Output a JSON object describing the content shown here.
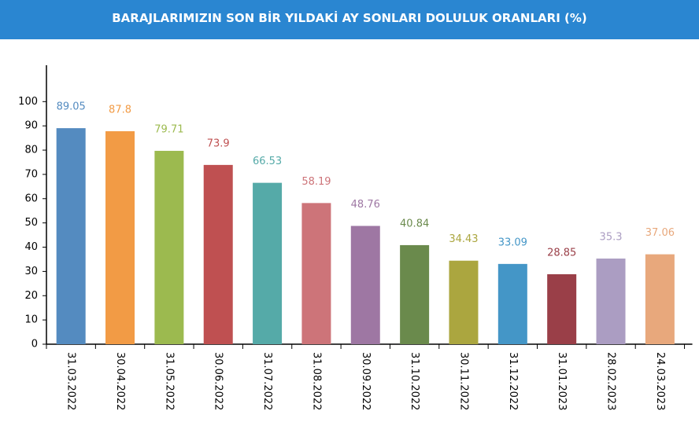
{
  "chart_data": {
    "type": "bar",
    "title": "BARAJLARIMIZIN SON BİR YILDAKİ AY SONLARI DOLULUK ORANLARI (%)",
    "categories": [
      "31.03.2022",
      "30.04.2022",
      "31.05.2022",
      "30.06.2022",
      "31.07.2022",
      "31.08.2022",
      "30.09.2022",
      "31.10.2022",
      "30.11.2022",
      "31.12.2022",
      "31.01.2023",
      "28.02.2023",
      "24.03.2023"
    ],
    "values": [
      89.05,
      87.8,
      79.71,
      73.9,
      66.53,
      58.19,
      48.76,
      40.84,
      34.43,
      33.09,
      28.85,
      35.3,
      37.06
    ],
    "colors": [
      "#548bc0",
      "#f29b45",
      "#9cba4f",
      "#bf5051",
      "#55aaa8",
      "#cd7479",
      "#9e77a3",
      "#6a8a4c",
      "#aba63f",
      "#4496c7",
      "#9a3f48",
      "#ab9dc2",
      "#e8a87c"
    ],
    "ylim": [
      0,
      115
    ],
    "yticks": [
      0,
      10,
      20,
      30,
      40,
      50,
      60,
      70,
      80,
      90,
      100
    ]
  }
}
